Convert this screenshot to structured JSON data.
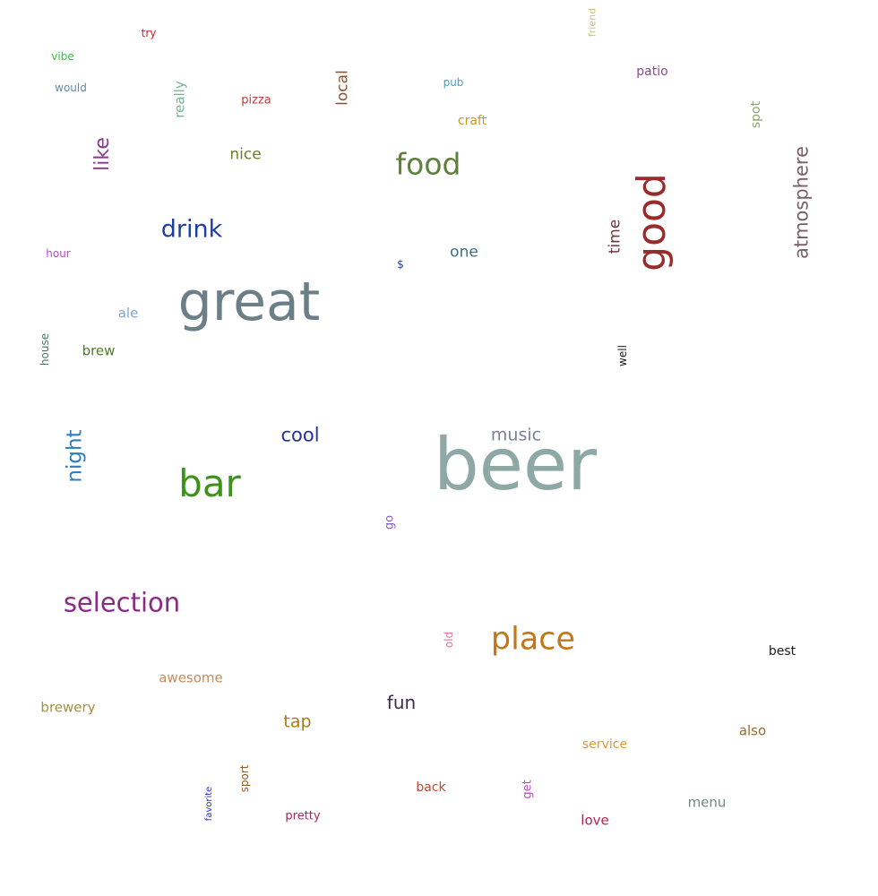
{
  "words": [
    {
      "text": "beer",
      "color": "#8ea8a6"
    },
    {
      "text": "great",
      "color": "#6c7e86"
    },
    {
      "text": "bar",
      "color": "#3d931a"
    },
    {
      "text": "good",
      "color": "#9a2b2b"
    },
    {
      "text": "place",
      "color": "#c4771a"
    },
    {
      "text": "food",
      "color": "#607f3e"
    },
    {
      "text": "selection",
      "color": "#8b2a84"
    },
    {
      "text": "drink",
      "color": "#1d3ea6"
    },
    {
      "text": "atmosphere",
      "color": "#7a5e6a"
    },
    {
      "text": "night",
      "color": "#2e7dbd"
    },
    {
      "text": "like",
      "color": "#893a8c"
    },
    {
      "text": "cool",
      "color": "#2330a3"
    },
    {
      "text": "music",
      "color": "#7a7f98"
    },
    {
      "text": "fun",
      "color": "#3c2a4f"
    },
    {
      "text": "tap",
      "color": "#a97f14"
    },
    {
      "text": "one",
      "color": "#3f6e86"
    },
    {
      "text": "nice",
      "color": "#6f7f25"
    },
    {
      "text": "time",
      "color": "#6a3640"
    },
    {
      "text": "local",
      "color": "#8a5232"
    },
    {
      "text": "awesome",
      "color": "#c68b5c"
    },
    {
      "text": "brewery",
      "color": "#a1913e"
    },
    {
      "text": "service",
      "color": "#d79b3e"
    },
    {
      "text": "menu",
      "color": "#6d8a7f"
    },
    {
      "text": "also",
      "color": "#9a6a28"
    },
    {
      "text": "love",
      "color": "#b3234f"
    },
    {
      "text": "back",
      "color": "#c84731"
    },
    {
      "text": "ale",
      "color": "#83a6d0"
    },
    {
      "text": "brew",
      "color": "#4e7b24"
    },
    {
      "text": "really",
      "color": "#7ab397"
    },
    {
      "text": "craft",
      "color": "#c8962f"
    },
    {
      "text": "patio",
      "color": "#8a4a8c"
    },
    {
      "text": "best",
      "color": "#1a1a1a"
    },
    {
      "text": "pretty",
      "color": "#a32a5b"
    },
    {
      "text": "pizza",
      "color": "#c23b3b"
    },
    {
      "text": "spot",
      "color": "#8aa36a"
    },
    {
      "text": "would",
      "color": "#5e8bad"
    },
    {
      "text": "pub",
      "color": "#4a9ec8"
    },
    {
      "text": "hour",
      "color": "#b24cc1"
    },
    {
      "text": "get",
      "color": "#c04bc8"
    },
    {
      "text": "well",
      "color": "#1a1a1a"
    },
    {
      "text": "go",
      "color": "#8a60c8"
    },
    {
      "text": "old",
      "color": "#d67a95"
    },
    {
      "text": "house",
      "color": "#3d7a6a"
    },
    {
      "text": "sport",
      "color": "#8a5a2a"
    },
    {
      "text": "try",
      "color": "#c42525"
    },
    {
      "text": "vibe",
      "color": "#3cc23c"
    },
    {
      "text": "friend",
      "color": "#c4c47a"
    },
    {
      "text": "favorite",
      "color": "#2f2fc2"
    },
    {
      "text": "$",
      "color": "#2c3e8a"
    }
  ]
}
